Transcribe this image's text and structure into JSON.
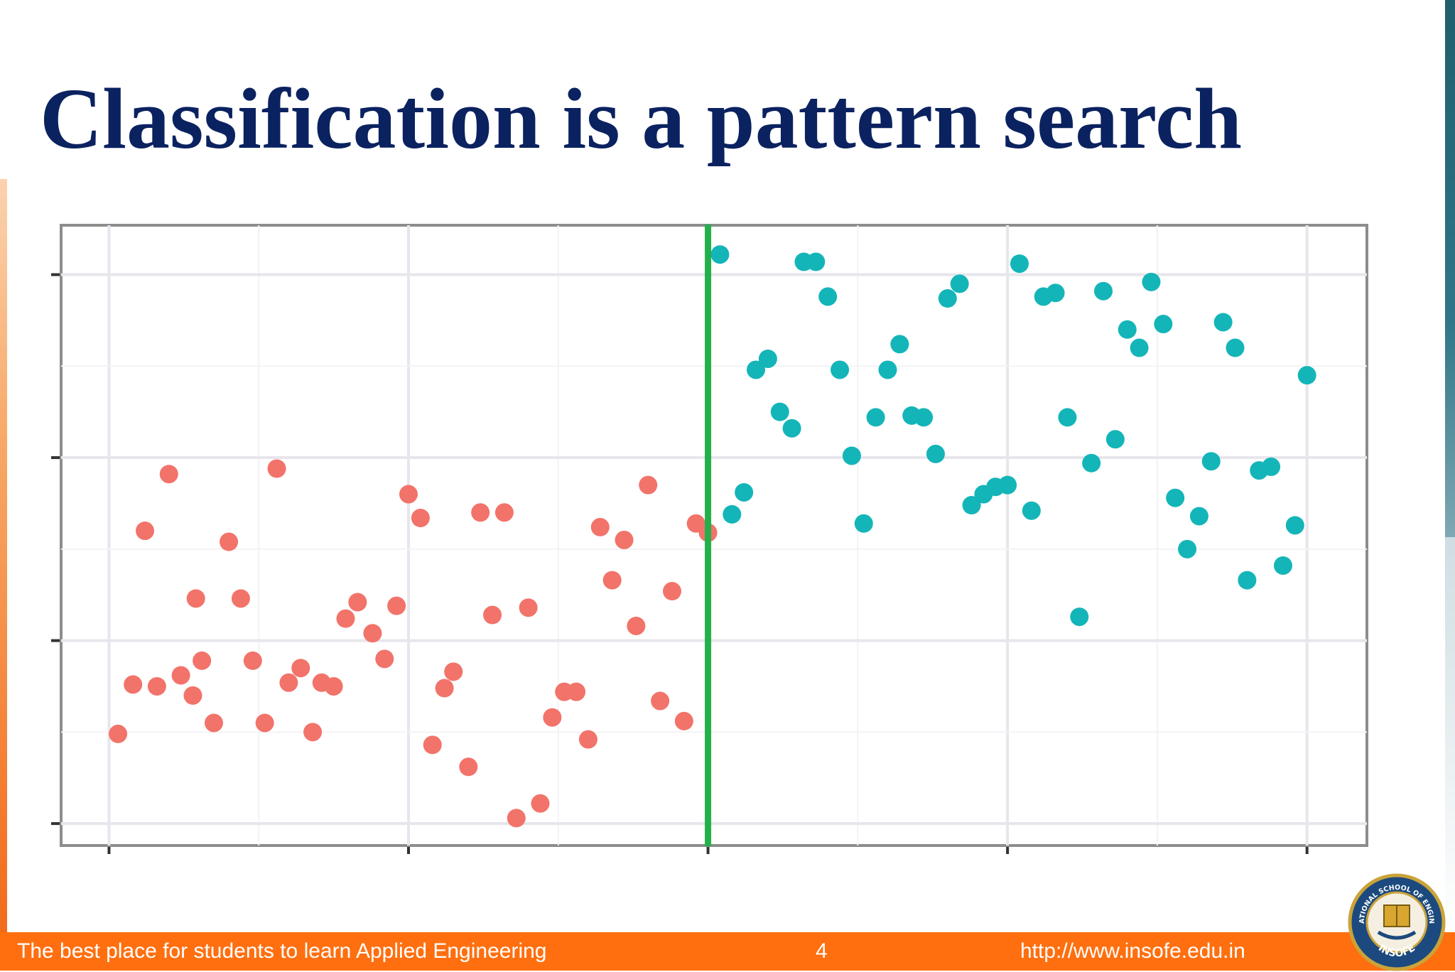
{
  "slide": {
    "title": "Classification is a pattern search"
  },
  "footer": {
    "tagline": "The best place for students to learn Applied Engineering",
    "page_number": "4",
    "url": "http://www.insofe.edu.in"
  },
  "logo": {
    "text_top": "INTERNATIONAL SCHOOL OF ENGINEERING",
    "text_bottom": "INSOFE"
  },
  "colors": {
    "title": "#0b2260",
    "class_a": "#f2736a",
    "class_b": "#14b5b8",
    "boundary": "#23b04a",
    "footer": "#ff6f0f"
  },
  "chart_data": {
    "type": "scatter",
    "title": "",
    "xlabel": "",
    "ylabel": "",
    "xlim": [
      -0.16,
      4.2
    ],
    "ylim": [
      -0.12,
      3.27
    ],
    "x_ticks": [
      0,
      1,
      2,
      3,
      4
    ],
    "y_ticks": [
      0,
      1,
      2,
      3
    ],
    "grid": true,
    "legend": "none",
    "decision_boundary_x": 2,
    "series": [
      {
        "color": "#f2736a",
        "points": [
          [
            0.03,
            0.49
          ],
          [
            0.08,
            0.76
          ],
          [
            0.12,
            1.6
          ],
          [
            0.16,
            0.75
          ],
          [
            0.2,
            1.91
          ],
          [
            0.24,
            0.81
          ],
          [
            0.28,
            0.7
          ],
          [
            0.29,
            1.23
          ],
          [
            0.31,
            0.89
          ],
          [
            0.35,
            0.55
          ],
          [
            0.4,
            1.54
          ],
          [
            0.44,
            1.23
          ],
          [
            0.48,
            0.89
          ],
          [
            0.52,
            0.55
          ],
          [
            0.56,
            1.94
          ],
          [
            0.6,
            0.77
          ],
          [
            0.64,
            0.85
          ],
          [
            0.68,
            0.5
          ],
          [
            0.71,
            0.77
          ],
          [
            0.75,
            0.75
          ],
          [
            0.79,
            1.12
          ],
          [
            0.83,
            1.21
          ],
          [
            0.88,
            1.04
          ],
          [
            0.92,
            0.9
          ],
          [
            0.96,
            1.19
          ],
          [
            1.0,
            1.8
          ],
          [
            1.04,
            1.67
          ],
          [
            1.08,
            0.43
          ],
          [
            1.12,
            0.74
          ],
          [
            1.15,
            0.83
          ],
          [
            1.2,
            0.31
          ],
          [
            1.24,
            1.7
          ],
          [
            1.28,
            1.14
          ],
          [
            1.32,
            1.7
          ],
          [
            1.36,
            0.03
          ],
          [
            1.4,
            1.18
          ],
          [
            1.44,
            0.11
          ],
          [
            1.48,
            0.58
          ],
          [
            1.52,
            0.72
          ],
          [
            1.56,
            0.72
          ],
          [
            1.6,
            0.46
          ],
          [
            1.64,
            1.62
          ],
          [
            1.68,
            1.33
          ],
          [
            1.72,
            1.55
          ],
          [
            1.76,
            1.08
          ],
          [
            1.8,
            1.85
          ],
          [
            1.84,
            0.67
          ],
          [
            1.88,
            1.27
          ],
          [
            1.92,
            0.56
          ],
          [
            1.96,
            1.64
          ],
          [
            2.0,
            1.59
          ]
        ]
      },
      {
        "color": "#14b5b8",
        "points": [
          [
            2.04,
            3.11
          ],
          [
            2.08,
            1.69
          ],
          [
            2.12,
            1.81
          ],
          [
            2.16,
            2.48
          ],
          [
            2.2,
            2.54
          ],
          [
            2.24,
            2.25
          ],
          [
            2.28,
            2.16
          ],
          [
            2.32,
            3.07
          ],
          [
            2.36,
            3.07
          ],
          [
            2.4,
            2.88
          ],
          [
            2.44,
            2.48
          ],
          [
            2.48,
            2.01
          ],
          [
            2.52,
            1.64
          ],
          [
            2.56,
            2.22
          ],
          [
            2.6,
            2.48
          ],
          [
            2.64,
            2.62
          ],
          [
            2.68,
            2.23
          ],
          [
            2.72,
            2.22
          ],
          [
            2.76,
            2.02
          ],
          [
            2.8,
            2.87
          ],
          [
            2.84,
            2.95
          ],
          [
            2.88,
            1.74
          ],
          [
            2.92,
            1.8
          ],
          [
            2.96,
            1.84
          ],
          [
            3.0,
            1.85
          ],
          [
            3.04,
            3.06
          ],
          [
            3.08,
            1.71
          ],
          [
            3.12,
            2.88
          ],
          [
            3.16,
            2.9
          ],
          [
            3.2,
            2.22
          ],
          [
            3.24,
            1.13
          ],
          [
            3.28,
            1.97
          ],
          [
            3.32,
            2.91
          ],
          [
            3.36,
            2.1
          ],
          [
            3.4,
            2.7
          ],
          [
            3.44,
            2.6
          ],
          [
            3.48,
            2.96
          ],
          [
            3.52,
            2.73
          ],
          [
            3.56,
            1.78
          ],
          [
            3.6,
            1.5
          ],
          [
            3.64,
            1.68
          ],
          [
            3.68,
            1.98
          ],
          [
            3.72,
            2.74
          ],
          [
            3.76,
            2.6
          ],
          [
            3.8,
            1.33
          ],
          [
            3.84,
            1.93
          ],
          [
            3.88,
            1.95
          ],
          [
            3.92,
            1.41
          ],
          [
            3.96,
            1.63
          ],
          [
            4.0,
            2.45
          ]
        ]
      }
    ]
  }
}
